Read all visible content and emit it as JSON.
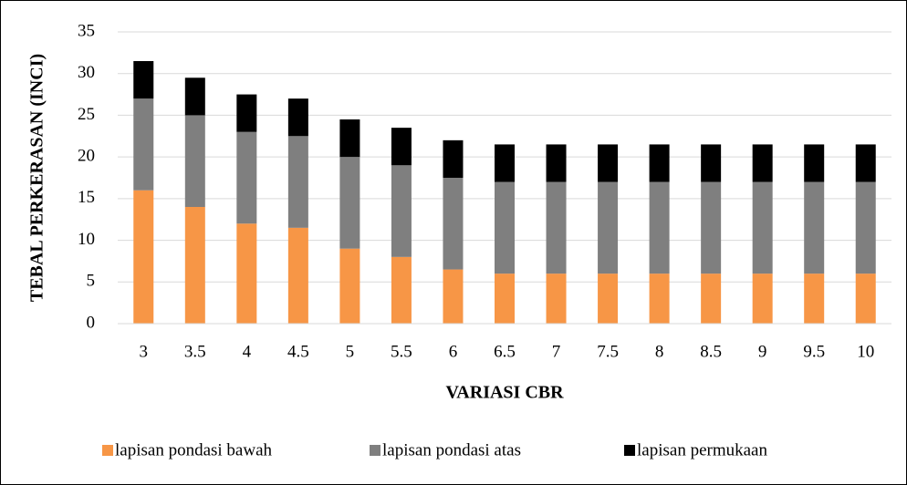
{
  "chart_data": {
    "type": "bar",
    "stacked": true,
    "xlabel": "VARIASI CBR",
    "ylabel": "TEBAL PERKERASAN (INCI)",
    "categories": [
      "3",
      "3.5",
      "4",
      "4.5",
      "5",
      "5.5",
      "6",
      "6.5",
      "7",
      "7.5",
      "8",
      "8.5",
      "9",
      "9.5",
      "10"
    ],
    "series": [
      {
        "name": "lapisan pondasi bawah",
        "color": "#f79646",
        "values": [
          16,
          14,
          12,
          11.5,
          9,
          8,
          6.5,
          6,
          6,
          6,
          6,
          6,
          6,
          6,
          6
        ]
      },
      {
        "name": "lapisan pondasi atas",
        "color": "#7f7f7f",
        "values": [
          11,
          11,
          11,
          11,
          11,
          11,
          11,
          11,
          11,
          11,
          11,
          11,
          11,
          11,
          11
        ]
      },
      {
        "name": "lapisan permukaan",
        "color": "#000000",
        "values": [
          4.5,
          4.5,
          4.5,
          4.5,
          4.5,
          4.5,
          4.5,
          4.5,
          4.5,
          4.5,
          4.5,
          4.5,
          4.5,
          4.5,
          4.5
        ]
      }
    ],
    "ylim": [
      0,
      35
    ],
    "yticks": [
      0,
      5,
      10,
      15,
      20,
      25,
      30,
      35
    ],
    "grid": true,
    "legend": "bottom"
  }
}
